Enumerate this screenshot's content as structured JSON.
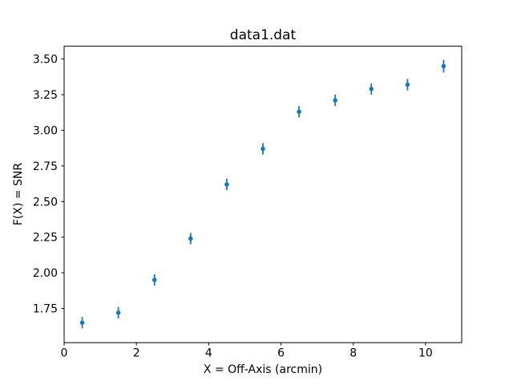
{
  "chart_data": {
    "type": "scatter",
    "title": "data1.dat",
    "xlabel": "X = Off-Axis (arcmin)",
    "ylabel": "F(X) = SNR",
    "x": [
      0.5,
      1.5,
      2.5,
      3.5,
      4.5,
      5.5,
      6.5,
      7.5,
      8.5,
      9.5,
      10.5
    ],
    "y": [
      1.65,
      1.72,
      1.95,
      2.24,
      2.62,
      2.87,
      3.13,
      3.21,
      3.29,
      3.32,
      3.45
    ],
    "yerr": [
      0.04,
      0.04,
      0.04,
      0.04,
      0.04,
      0.04,
      0.04,
      0.04,
      0.04,
      0.04,
      0.045
    ],
    "xlim": [
      0,
      11
    ],
    "ylim": [
      1.51,
      3.59
    ],
    "xticks": [
      0,
      2,
      4,
      6,
      8,
      10
    ],
    "yticks": [
      1.75,
      2.0,
      2.25,
      2.5,
      2.75,
      3.0,
      3.25,
      3.5
    ],
    "marker_color": "#1f77b4",
    "axis_color": "#000000",
    "background_color": "#ffffff",
    "grid": false,
    "legend_position": "none"
  }
}
